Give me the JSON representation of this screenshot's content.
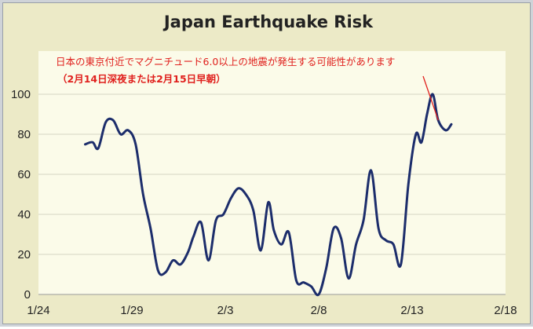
{
  "chart_data": {
    "type": "line",
    "title": "Japan Earthquake Risk",
    "xlabel": "",
    "ylabel": "",
    "x_tick_labels": [
      "1/24",
      "1/29",
      "2/3",
      "2/8",
      "2/13",
      "2/18"
    ],
    "y_ticks": [
      0,
      20,
      40,
      60,
      80,
      100
    ],
    "xlim": [
      0,
      25
    ],
    "ylim": [
      0,
      100
    ],
    "grid": "horizontal",
    "annotation": {
      "line1": "日本の東京付近でマグニチュード6.0以上の地震が発生する可能性があります",
      "line2": "（2月14日深夜または2月15日早朝）",
      "points_to_x": 21.4
    },
    "series": [
      {
        "color": "#1c2d6b",
        "x": [
          2.5,
          2.9,
          3.2,
          3.6,
          4.0,
          4.4,
          4.8,
          5.2,
          5.6,
          6.0,
          6.4,
          6.8,
          7.2,
          7.6,
          8.0,
          8.3,
          8.7,
          9.1,
          9.5,
          9.9,
          10.3,
          10.7,
          11.1,
          11.5,
          11.9,
          12.3,
          12.6,
          13.0,
          13.4,
          13.8,
          14.2,
          14.6,
          15.0,
          15.4,
          15.8,
          16.2,
          16.6,
          17.0,
          17.4,
          17.8,
          18.2,
          18.6,
          19.0,
          19.4,
          19.8,
          20.2,
          20.5,
          20.8,
          21.1,
          21.4,
          21.8,
          22.1
        ],
        "y": [
          75,
          76,
          73,
          86,
          87,
          80,
          82,
          75,
          50,
          33,
          12,
          11,
          17,
          15,
          21,
          29,
          36,
          17,
          37,
          40,
          48,
          53,
          50,
          42,
          22,
          46,
          32,
          25,
          31,
          7,
          6,
          4,
          0,
          13,
          33,
          28,
          8,
          25,
          37,
          62,
          33,
          27,
          25,
          15,
          55,
          80,
          76,
          90,
          100,
          87,
          82,
          85
        ]
      }
    ]
  }
}
